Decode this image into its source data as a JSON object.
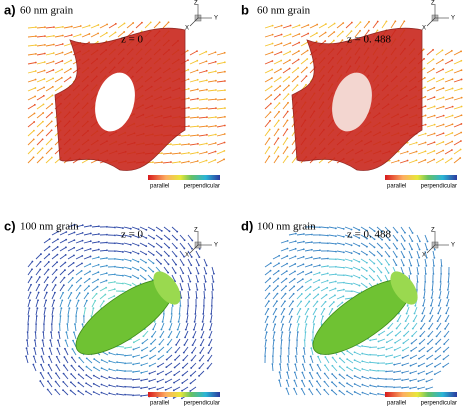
{
  "panels": [
    {
      "label": "a)",
      "title": "60 nm grain",
      "z": "z = 0",
      "colorbar": {
        "left": "parallel",
        "right": "perpendicular"
      },
      "axes": {
        "z": "Z",
        "y": "Y",
        "x": "X"
      }
    },
    {
      "label": "b",
      "title": "60 nm grain",
      "z": "z = 0. 488",
      "colorbar": {
        "left": "parallel",
        "right": "perpendicular"
      },
      "axes": {
        "z": "Z",
        "y": "Y",
        "x": "X"
      }
    },
    {
      "label": "c)",
      "title": "100 nm grain",
      "z": "z = 0",
      "colorbar": {
        "left": "parallel",
        "right": "perpendicular"
      },
      "axes": {
        "z": "Z",
        "y": "Y",
        "x": "X"
      }
    },
    {
      "label": "d)",
      "title": "100 nm grain",
      "z": "z = 0. 488",
      "colorbar": {
        "left": "parallel",
        "right": "perpendicular"
      },
      "axes": {
        "z": "Z",
        "y": "Y",
        "x": "X"
      }
    }
  ]
}
